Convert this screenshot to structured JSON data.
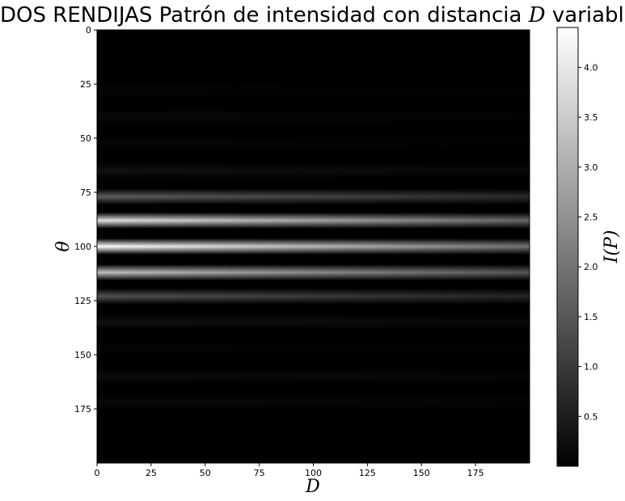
{
  "chart_data": {
    "type": "heatmap",
    "title_prefix": "DOS RENDIJAS Patrón de intensidad con distancia ",
    "title_symbol": "D",
    "title_suffix": " variable",
    "xlabel": "D",
    "ylabel": "θ",
    "colorbar_label": "I(P)",
    "colormap": "gray",
    "x_range": [
      0,
      200
    ],
    "y_range": [
      0,
      200
    ],
    "y_inverted": true,
    "x_ticks": [
      0,
      25,
      50,
      75,
      100,
      125,
      150,
      175
    ],
    "y_ticks": [
      0,
      25,
      50,
      75,
      100,
      125,
      150,
      175
    ],
    "colorbar_range": [
      0.0,
      4.4
    ],
    "colorbar_ticks": [
      0.5,
      1.0,
      1.5,
      2.0,
      2.5,
      3.0,
      3.5,
      4.0
    ],
    "bands_left_edge": [
      {
        "theta": 28,
        "intensity": 0.08
      },
      {
        "theta": 40,
        "intensity": 0.15
      },
      {
        "theta": 52,
        "intensity": 0.1
      },
      {
        "theta": 65,
        "intensity": 0.3
      },
      {
        "theta": 77,
        "intensity": 1.6
      },
      {
        "theta": 88,
        "intensity": 3.9
      },
      {
        "theta": 100,
        "intensity": 4.4
      },
      {
        "theta": 112,
        "intensity": 3.3
      },
      {
        "theta": 123,
        "intensity": 1.4
      },
      {
        "theta": 135,
        "intensity": 0.3
      },
      {
        "theta": 147,
        "intensity": 0.08
      },
      {
        "theta": 160,
        "intensity": 0.2
      },
      {
        "theta": 172,
        "intensity": 0.15
      }
    ],
    "intensity_at_right_edge_fraction": 0.45
  }
}
